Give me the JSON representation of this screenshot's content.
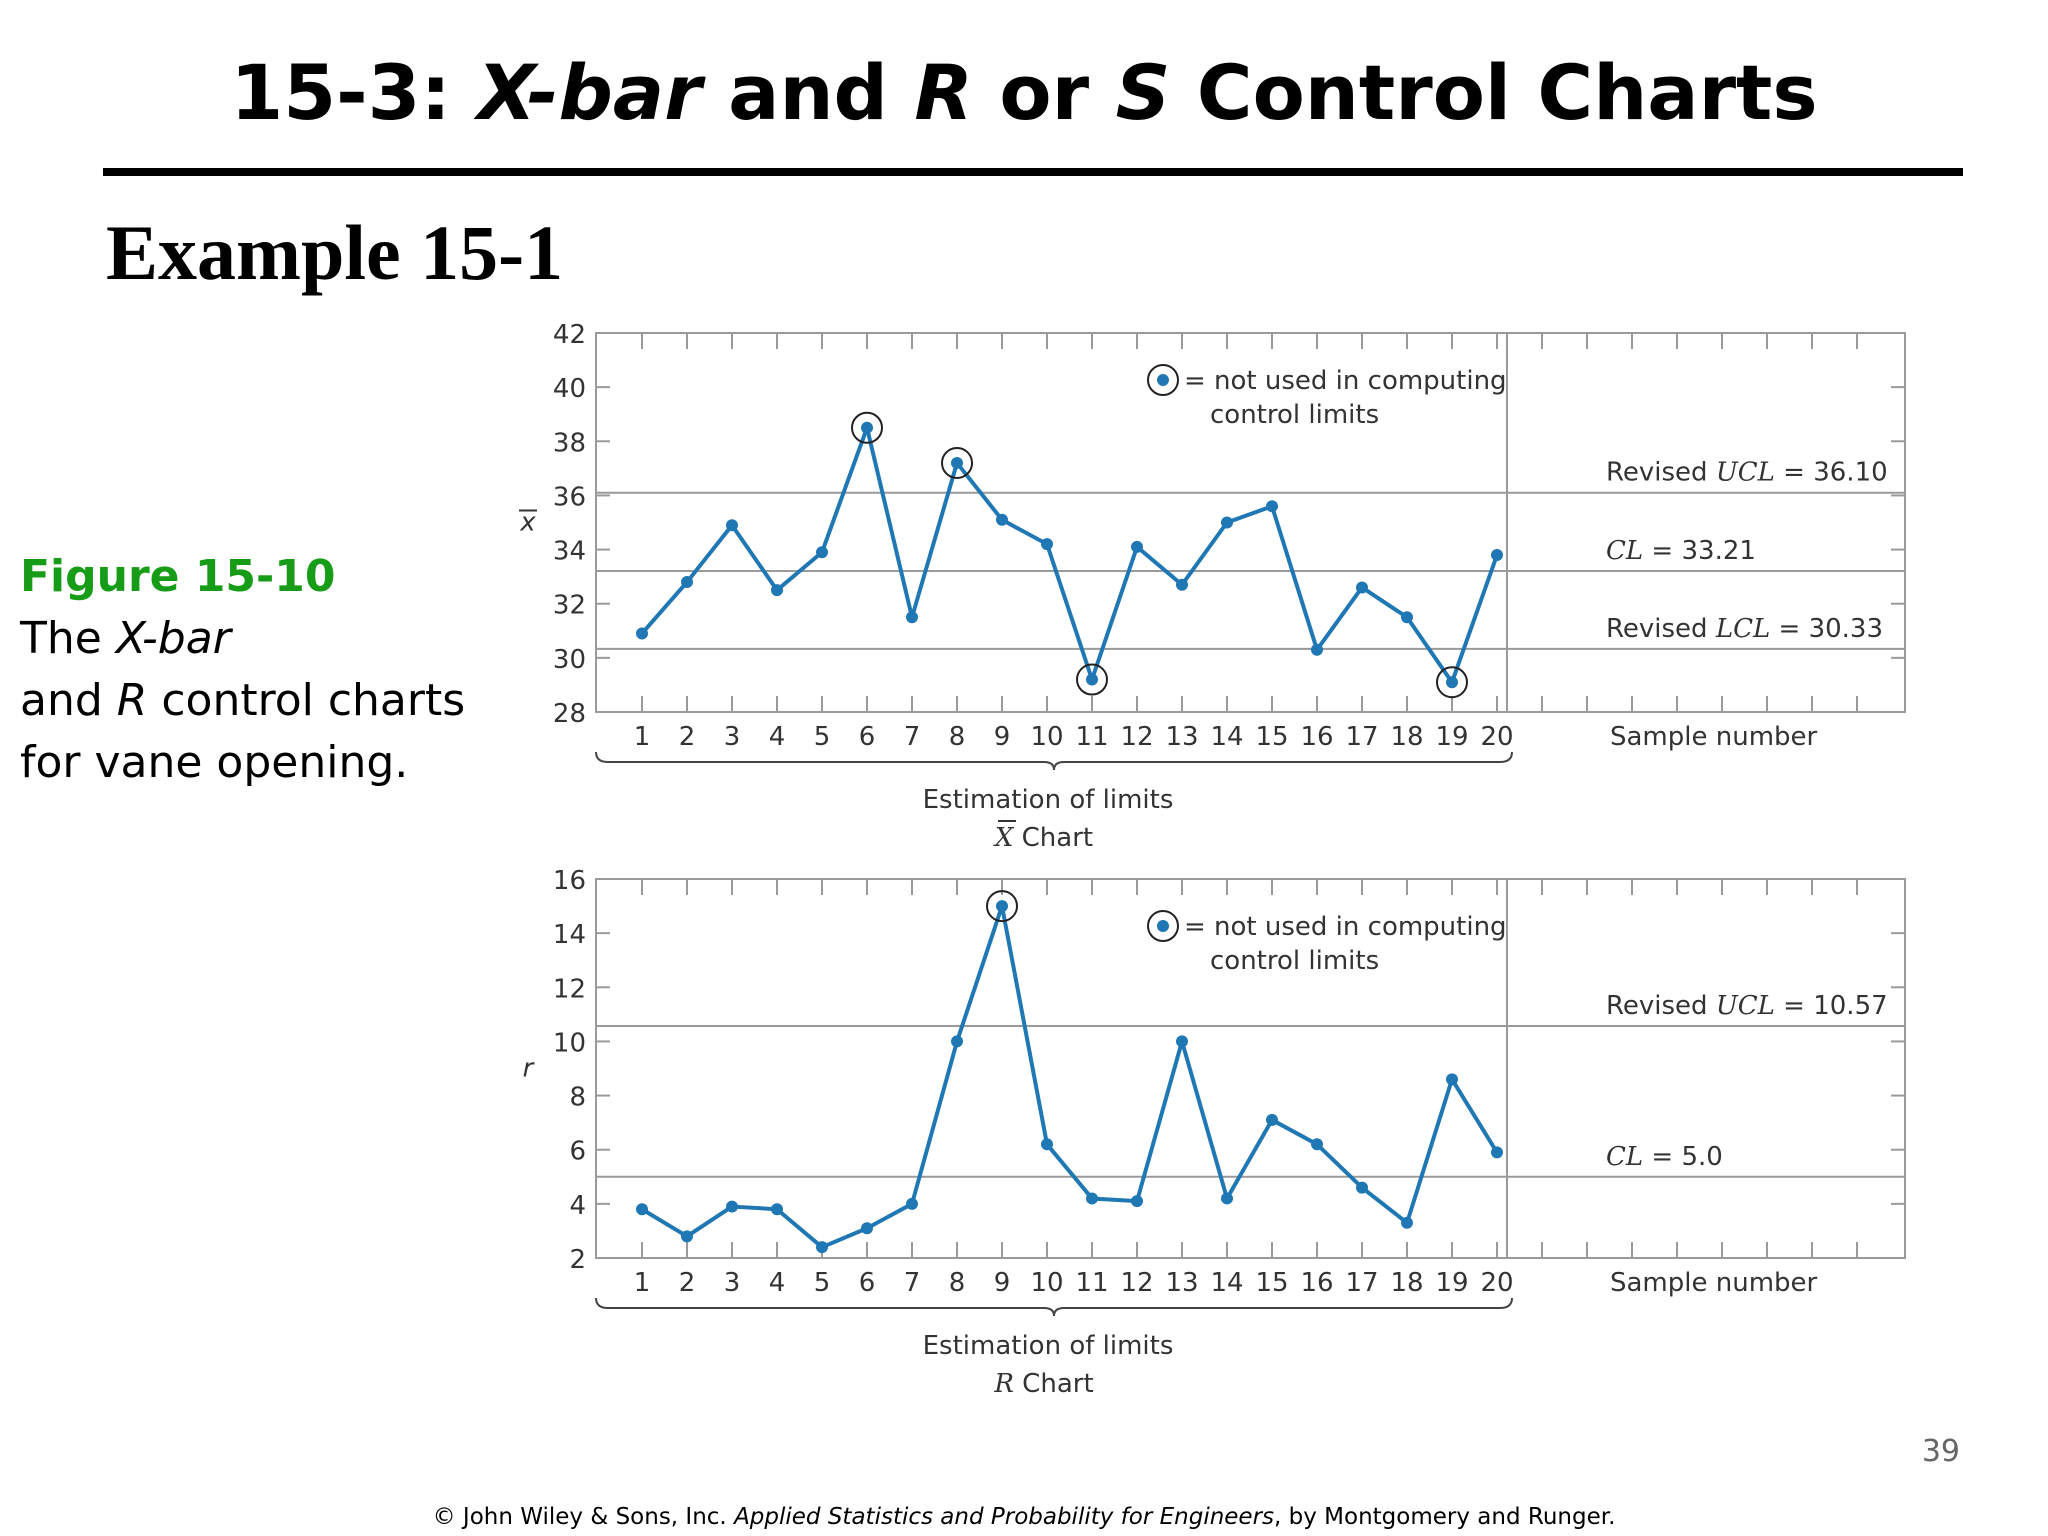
{
  "slide": {
    "title_parts": [
      "15-3: ",
      "X-bar",
      " and ",
      "R",
      " or ",
      "S",
      " Control Charts"
    ],
    "example": "Example 15-1",
    "caption": {
      "figure": "Figure 15-10",
      "line1_a": "The ",
      "line1_b": "X-bar",
      "line2_a": "and ",
      "line2_b": "R",
      "line2_c": " control charts",
      "line3": "for vane opening."
    },
    "page_number": "39",
    "footer": {
      "pre": "© John Wiley & Sons, Inc.  ",
      "book": "Applied Statistics and Probability for Engineers",
      "post": ", by Montgomery and Runger."
    }
  },
  "chart_data": [
    {
      "type": "line",
      "title": "X Chart",
      "title_symbol": "X",
      "title_text": " Chart",
      "ylabel": "x",
      "xlabel": "Sample number",
      "brace_label": "Estimation of limits",
      "x": [
        1,
        2,
        3,
        4,
        5,
        6,
        7,
        8,
        9,
        10,
        11,
        12,
        13,
        14,
        15,
        16,
        17,
        18,
        19,
        20
      ],
      "values": [
        30.9,
        32.8,
        34.9,
        32.5,
        33.9,
        38.5,
        31.5,
        37.2,
        35.1,
        34.2,
        29.2,
        34.1,
        32.7,
        35.0,
        35.6,
        30.3,
        32.6,
        31.5,
        29.1,
        33.8
      ],
      "excluded_points": [
        6,
        8,
        11,
        19
      ],
      "ylim": [
        28,
        42
      ],
      "yticks": [
        28,
        30,
        32,
        34,
        36,
        38,
        40,
        42
      ],
      "control_lines": [
        {
          "name": "Revised UCL",
          "pre": "Revised ",
          "sym": "UCL",
          "value": 36.1,
          "label": " = 36.10"
        },
        {
          "name": "CL",
          "pre": "",
          "sym": "CL",
          "value": 33.21,
          "label": " = 33.21"
        },
        {
          "name": "Revised LCL",
          "pre": "Revised ",
          "sym": "LCL",
          "value": 30.33,
          "label": " = 30.33"
        }
      ],
      "legend": {
        "line1": "= not used in computing",
        "line2": "control limits"
      },
      "color": "#1f77b4"
    },
    {
      "type": "line",
      "title": "R Chart",
      "title_symbol": "R",
      "title_text": " Chart",
      "ylabel": "r",
      "xlabel": "Sample number",
      "brace_label": "Estimation of limits",
      "x": [
        1,
        2,
        3,
        4,
        5,
        6,
        7,
        8,
        9,
        10,
        11,
        12,
        13,
        14,
        15,
        16,
        17,
        18,
        19,
        20
      ],
      "values": [
        3.8,
        2.8,
        3.9,
        3.8,
        2.4,
        3.1,
        4.0,
        10.0,
        15.0,
        6.2,
        4.2,
        4.1,
        10.0,
        4.2,
        7.1,
        6.2,
        4.6,
        3.3,
        8.6,
        5.9
      ],
      "excluded_points": [
        9
      ],
      "ylim": [
        2,
        16
      ],
      "yticks": [
        2,
        4,
        6,
        8,
        10,
        12,
        14,
        16
      ],
      "control_lines": [
        {
          "name": "Revised UCL",
          "pre": "Revised ",
          "sym": "UCL",
          "value": 10.57,
          "label": " = 10.57"
        },
        {
          "name": "CL",
          "pre": "",
          "sym": "CL",
          "value": 5.0,
          "label": " = 5.0"
        }
      ],
      "legend": {
        "line1": "= not used in computing",
        "line2": "control limits"
      },
      "color": "#1f77b4"
    }
  ]
}
